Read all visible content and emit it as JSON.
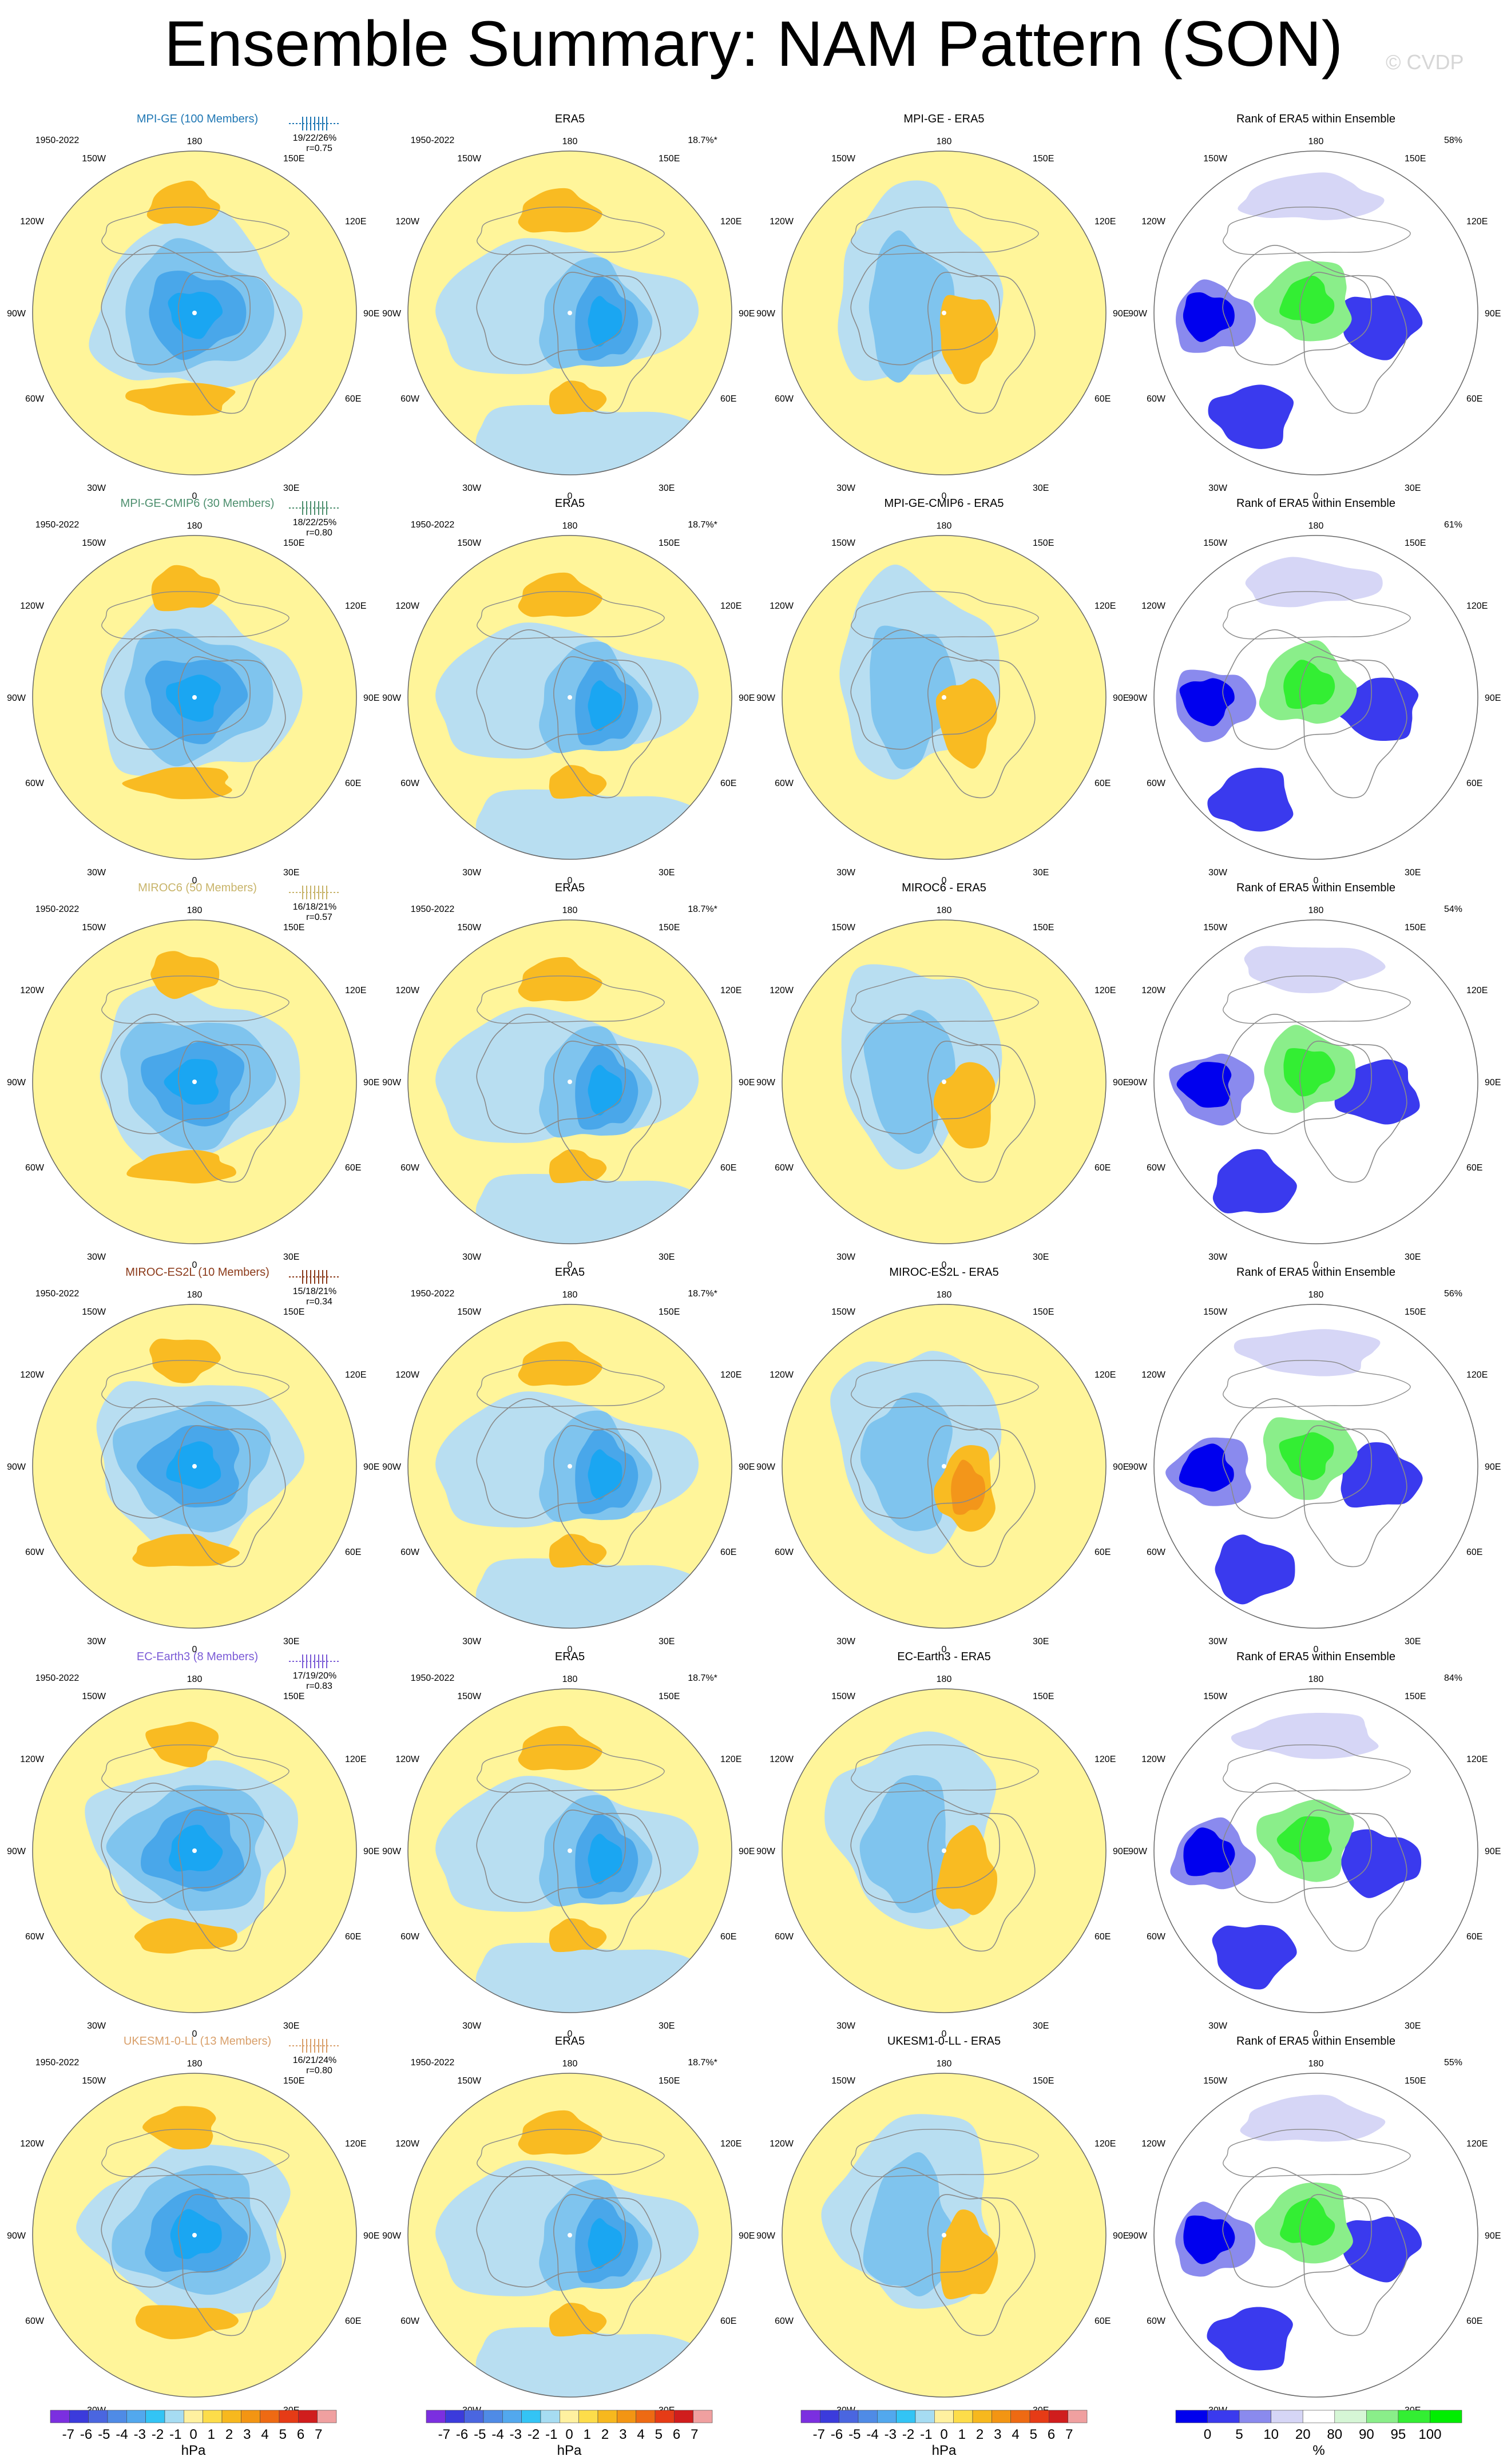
{
  "title": "Ensemble Summary: NAM Pattern (SON)",
  "copyright": "© CVDP",
  "period": "1950-2022",
  "era5_pct": "18.7%*",
  "lon_labels": [
    "180",
    "150E",
    "120E",
    "90E",
    "60E",
    "30E",
    "0",
    "30W",
    "60W",
    "90W",
    "120W",
    "150W"
  ],
  "rows": [
    {
      "model": "MPI-GE (100 Members)",
      "color": "#1f77b4",
      "stats": "19/22/26%",
      "r": "r=0.75",
      "diff_title": "MPI-GE - ERA5",
      "rank_pct": "58%"
    },
    {
      "model": "MPI-GE-CMIP6 (30 Members)",
      "color": "#4d8f6e",
      "stats": "18/22/25%",
      "r": "r=0.80",
      "diff_title": "MPI-GE-CMIP6 - ERA5",
      "rank_pct": "61%"
    },
    {
      "model": "MIROC6 (50 Members)",
      "color": "#c8b46a",
      "stats": "16/18/21%",
      "r": "r=0.57",
      "diff_title": "MIROC6 - ERA5",
      "rank_pct": "54%"
    },
    {
      "model": "MIROC-ES2L (10 Members)",
      "color": "#8b3a1a",
      "stats": "15/18/21%",
      "r": "r=0.34",
      "diff_title": "MIROC-ES2L - ERA5",
      "rank_pct": "56%"
    },
    {
      "model": "EC-Earth3 (8 Members)",
      "color": "#7b5bd6",
      "stats": "17/19/20%",
      "r": "r=0.83",
      "diff_title": "EC-Earth3 - ERA5",
      "rank_pct": "84%"
    },
    {
      "model": "UKESM1-0-LL (13 Members)",
      "color": "#d9a06b",
      "stats": "16/21/24%",
      "r": "r=0.80",
      "diff_title": "UKESM1-0-LL - ERA5",
      "rank_pct": "55%"
    }
  ],
  "era5_title": "ERA5",
  "rank_title": "Rank of ERA5 within Ensemble",
  "colorbar_hpa": {
    "labels": [
      "-7",
      "-6",
      "-5",
      "-4",
      "-3",
      "-2",
      "-1",
      "0",
      "1",
      "2",
      "3",
      "4",
      "5",
      "6",
      "7"
    ],
    "colors": [
      "#7b2fe0",
      "#3b3bdc",
      "#4a66e0",
      "#4f8be6",
      "#52a8ee",
      "#33c4f5",
      "#a6dcf2",
      "#fff1a0",
      "#fddd4a",
      "#f7b81e",
      "#f39513",
      "#ee6a13",
      "#e63b16",
      "#d01d1d",
      "#f0a0a0"
    ],
    "unit": "hPa"
  },
  "colorbar_rank": {
    "labels": [
      "0",
      "5",
      "10",
      "20",
      "80",
      "90",
      "95",
      "100"
    ],
    "colors": [
      "#0000ee",
      "#3a3aee",
      "#8a8aee",
      "#d6d6f6",
      "#ffffff",
      "#d6f6d6",
      "#8aee8a",
      "#33ee33",
      "#00ee00"
    ],
    "unit": "%"
  },
  "palette": {
    "pos": "#fff59a",
    "neg1": "#b8def1",
    "neg2": "#7fc4ee",
    "neg3": "#49a7ea",
    "neg4": "#1aa6f2",
    "yel": "#fce3a0",
    "org": "#f9bb22",
    "org2": "#f3961a"
  }
}
